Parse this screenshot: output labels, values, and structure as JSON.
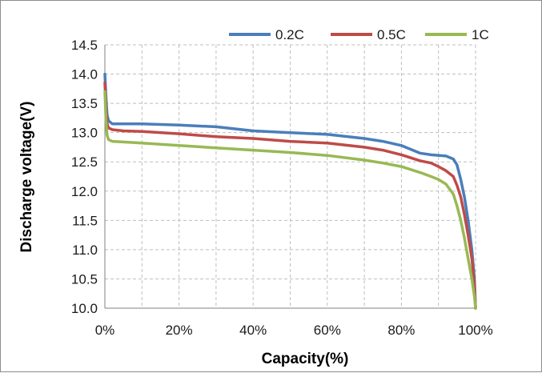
{
  "chart_data": {
    "type": "line",
    "title": "",
    "xlabel": "Capacity(%)",
    "ylabel": "Discharge voltage(V)",
    "xlim": [
      0,
      100
    ],
    "ylim": [
      10.0,
      14.5
    ],
    "x_ticks": [
      0,
      20,
      40,
      60,
      80,
      100
    ],
    "x_tick_labels": [
      "0%",
      "20%",
      "40%",
      "60%",
      "80%",
      "100%"
    ],
    "x_grid": [
      0,
      10,
      20,
      30,
      40,
      50,
      60,
      70,
      80,
      90,
      100
    ],
    "y_ticks": [
      10.0,
      10.5,
      11.0,
      11.5,
      12.0,
      12.5,
      13.0,
      13.5,
      14.0,
      14.5
    ],
    "y_tick_labels": [
      "10.0",
      "10.5",
      "11.0",
      "11.5",
      "12.0",
      "12.5",
      "13.0",
      "13.5",
      "14.0",
      "14.5"
    ],
    "grid": "dashed",
    "legend_position": "top-right",
    "series": [
      {
        "name": "0.2C",
        "color": "#4a7ebb",
        "points": [
          [
            0,
            14.0
          ],
          [
            0.3,
            13.6
          ],
          [
            0.6,
            13.3
          ],
          [
            1,
            13.2
          ],
          [
            2,
            13.15
          ],
          [
            5,
            13.15
          ],
          [
            10,
            13.15
          ],
          [
            20,
            13.13
          ],
          [
            30,
            13.1
          ],
          [
            40,
            13.03
          ],
          [
            50,
            13.0
          ],
          [
            60,
            12.97
          ],
          [
            70,
            12.9
          ],
          [
            75,
            12.85
          ],
          [
            80,
            12.78
          ],
          [
            85,
            12.65
          ],
          [
            88,
            12.62
          ],
          [
            92,
            12.6
          ],
          [
            94,
            12.55
          ],
          [
            95,
            12.45
          ],
          [
            96,
            12.2
          ],
          [
            97,
            11.9
          ],
          [
            98,
            11.5
          ],
          [
            99,
            11.0
          ],
          [
            99.7,
            10.5
          ],
          [
            100,
            10.0
          ]
        ]
      },
      {
        "name": "0.5C",
        "color": "#be4b48",
        "points": [
          [
            0,
            13.85
          ],
          [
            0.3,
            13.4
          ],
          [
            0.6,
            13.15
          ],
          [
            1,
            13.08
          ],
          [
            2,
            13.05
          ],
          [
            5,
            13.03
          ],
          [
            10,
            13.02
          ],
          [
            20,
            12.98
          ],
          [
            30,
            12.93
          ],
          [
            40,
            12.9
          ],
          [
            50,
            12.85
          ],
          [
            60,
            12.82
          ],
          [
            70,
            12.75
          ],
          [
            75,
            12.7
          ],
          [
            80,
            12.62
          ],
          [
            85,
            12.52
          ],
          [
            88,
            12.48
          ],
          [
            90,
            12.42
          ],
          [
            92,
            12.35
          ],
          [
            94,
            12.25
          ],
          [
            95,
            12.1
          ],
          [
            96,
            11.9
          ],
          [
            97,
            11.6
          ],
          [
            98,
            11.25
          ],
          [
            99,
            10.85
          ],
          [
            99.7,
            10.4
          ],
          [
            100,
            10.0
          ]
        ]
      },
      {
        "name": "1C",
        "color": "#98b954",
        "points": [
          [
            0,
            13.7
          ],
          [
            0.3,
            13.2
          ],
          [
            0.6,
            12.95
          ],
          [
            1,
            12.88
          ],
          [
            2,
            12.85
          ],
          [
            5,
            12.84
          ],
          [
            10,
            12.82
          ],
          [
            20,
            12.78
          ],
          [
            30,
            12.74
          ],
          [
            40,
            12.7
          ],
          [
            50,
            12.66
          ],
          [
            60,
            12.61
          ],
          [
            70,
            12.53
          ],
          [
            75,
            12.48
          ],
          [
            80,
            12.42
          ],
          [
            85,
            12.32
          ],
          [
            88,
            12.25
          ],
          [
            90,
            12.2
          ],
          [
            92,
            12.12
          ],
          [
            94,
            11.95
          ],
          [
            95,
            11.75
          ],
          [
            96,
            11.5
          ],
          [
            97,
            11.2
          ],
          [
            98,
            10.85
          ],
          [
            99,
            10.5
          ],
          [
            99.7,
            10.2
          ],
          [
            100,
            10.0
          ]
        ]
      }
    ]
  }
}
